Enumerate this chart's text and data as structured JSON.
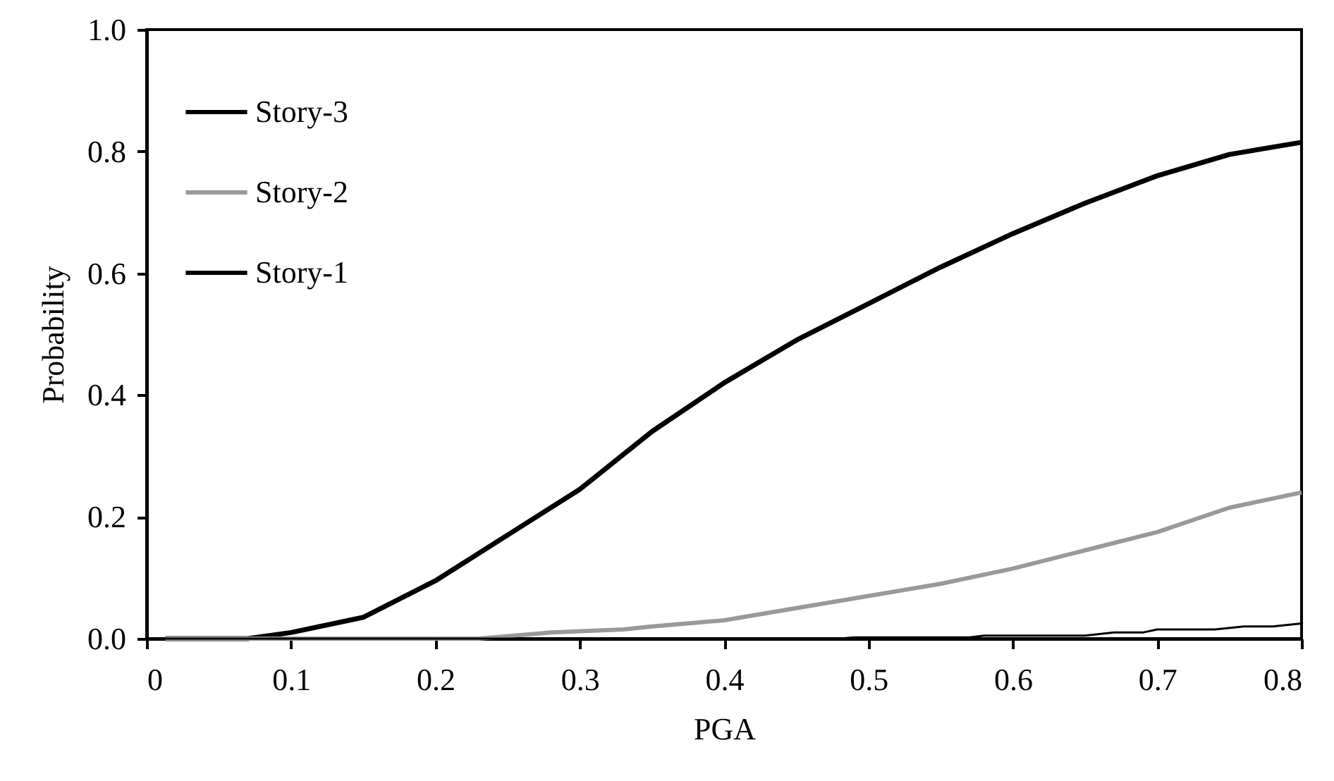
{
  "chart_data": {
    "type": "line",
    "xlabel": "PGA",
    "ylabel": "Probability",
    "xlim": [
      0,
      0.8
    ],
    "xticks": [
      0,
      0.1,
      0.2,
      0.3,
      0.4,
      0.5,
      0.6,
      0.7,
      0.8
    ],
    "ylim": [
      0,
      1.0
    ],
    "yticks": [
      {
        "value": 0,
        "label": "0.0"
      },
      {
        "value": 0.2,
        "label": "0.2"
      },
      {
        "value": 0.4,
        "label": "0.4"
      },
      {
        "value": 0.6,
        "label": "0.6"
      },
      {
        "value": 0.8,
        "label": "0.8"
      },
      {
        "value": 1.0,
        "label": "1.0"
      }
    ],
    "grid": false,
    "legend": "top left",
    "marker": "none",
    "line_style": "solid",
    "series": [
      {
        "name": "Story-3",
        "color": "#000000",
        "x": [
          0.013,
          0.07,
          0.1,
          0.15,
          0.2,
          0.25,
          0.3,
          0.35,
          0.4,
          0.45,
          0.5,
          0.55,
          0.6,
          0.65,
          0.7,
          0.75,
          0.8
        ],
        "values": [
          0,
          0,
          0.01,
          0.035,
          0.095,
          0.17,
          0.245,
          0.34,
          0.42,
          0.49,
          0.55,
          0.61,
          0.665,
          0.715,
          0.76,
          0.795,
          0.815
        ]
      },
      {
        "name": "Story-2",
        "color": "#999999",
        "x": [
          0.013,
          0.23,
          0.28,
          0.33,
          0.35,
          0.4,
          0.45,
          0.5,
          0.55,
          0.6,
          0.65,
          0.7,
          0.75,
          0.8
        ],
        "values": [
          0,
          0,
          0.01,
          0.015,
          0.02,
          0.03,
          0.05,
          0.07,
          0.09,
          0.115,
          0.145,
          0.175,
          0.215,
          0.24
        ]
      },
      {
        "name": "Story-1",
        "color": "#000000",
        "x": [
          0.013,
          0.48,
          0.49,
          0.57,
          0.58,
          0.65,
          0.67,
          0.69,
          0.7,
          0.74,
          0.76,
          0.78,
          0.8
        ],
        "values": [
          0,
          0,
          0.002,
          0.002,
          0.005,
          0.005,
          0.01,
          0.01,
          0.015,
          0.015,
          0.02,
          0.02,
          0.025
        ]
      }
    ]
  }
}
